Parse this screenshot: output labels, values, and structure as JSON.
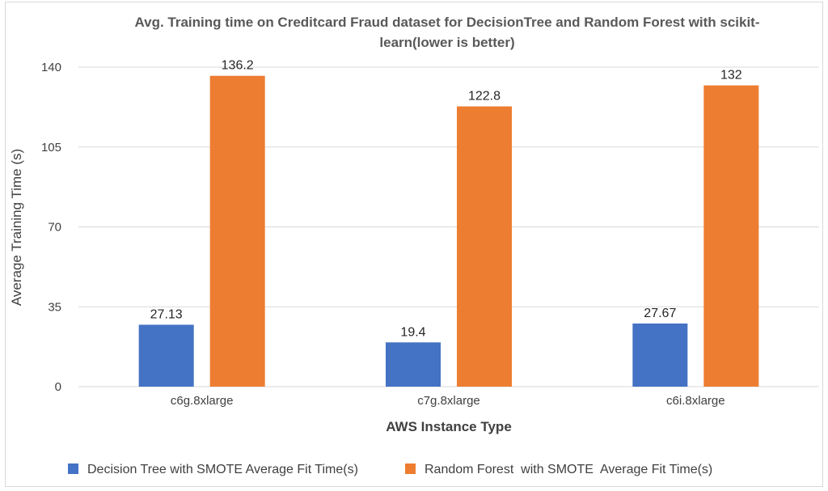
{
  "chart_data": {
    "type": "bar",
    "title_line1": "Avg. Training time on Creditcard Fraud dataset for DecisionTree and Random Forest with scikit-",
    "title_line2": "learn(lower is better)",
    "xlabel": "AWS Instance Type",
    "ylabel": "Average Training Time (s)",
    "categories": [
      "c6g.8xlarge",
      "c7g.8xlarge",
      "c6i.8xlarge"
    ],
    "series": [
      {
        "name": "Decision Tree with SMOTE Average Fit Time(s)",
        "color": "#4472c4",
        "values": [
          27.13,
          19.4,
          27.67
        ],
        "labels": [
          "27.13",
          "19.4",
          "27.67"
        ]
      },
      {
        "name": "Random Forest  with SMOTE  Average Fit Time(s)",
        "color": "#ed7d31",
        "values": [
          136.2,
          122.8,
          132
        ],
        "labels": [
          "136.2",
          "122.8",
          "132"
        ]
      }
    ],
    "yticks": [
      "0",
      "35",
      "70",
      "105",
      "140"
    ],
    "ytick_values": [
      0,
      35,
      70,
      105,
      140
    ],
    "ylim": [
      0,
      140
    ],
    "grid": true,
    "legend_position": "bottom"
  }
}
